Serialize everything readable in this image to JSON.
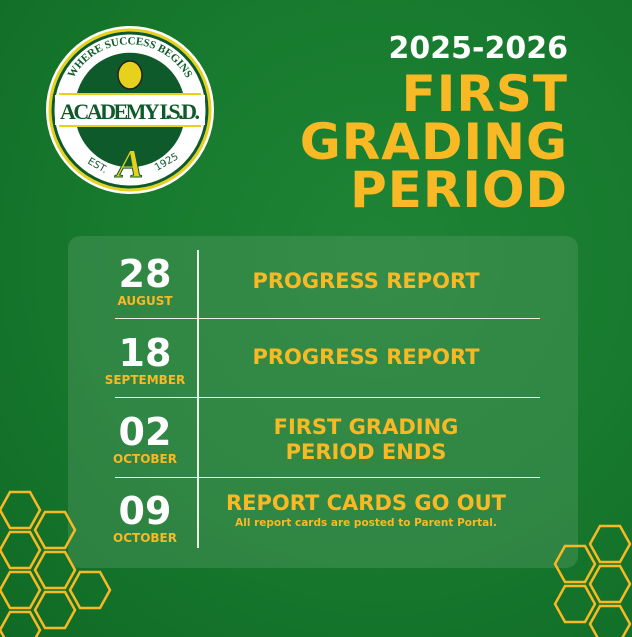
{
  "logo": {
    "top_text": "WHERE SUCCESS BEGINS",
    "name": "ACADEMY I.S.D.",
    "est_left": "EST.",
    "est_right": "1925",
    "letter": "A"
  },
  "title": {
    "year": "2025-2026",
    "line1": "FIRST",
    "line2": "GRADING",
    "line3": "PERIOD"
  },
  "events": [
    {
      "day": "28",
      "month": "AUGUST",
      "title": "PROGRESS REPORT"
    },
    {
      "day": "18",
      "month": "SEPTEMBER",
      "title": "PROGRESS REPORT"
    },
    {
      "day": "02",
      "month": "OCTOBER",
      "title": "FIRST GRADING PERIOD ENDS",
      "title_line1": "FIRST GRADING",
      "title_line2": "PERIOD ENDS"
    },
    {
      "day": "09",
      "month": "OCTOBER",
      "title": "REPORT CARDS GO OUT",
      "note": "All report cards are posted to Parent Portal."
    }
  ],
  "colors": {
    "background": "#16772c",
    "accent": "#f9b925",
    "text": "#ffffff",
    "logo_green": "#0f5a2a"
  }
}
